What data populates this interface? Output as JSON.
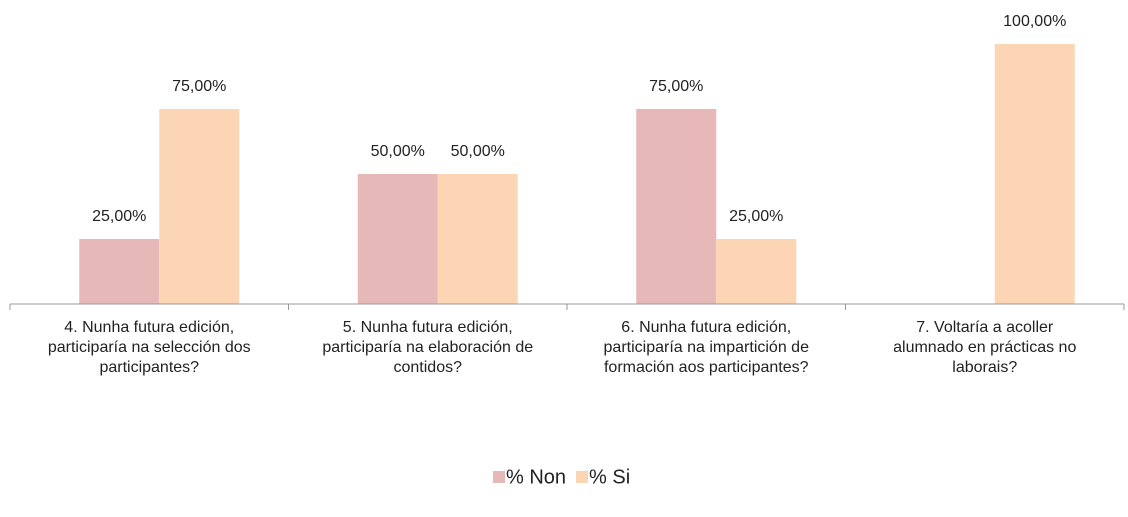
{
  "chart_data": {
    "type": "bar",
    "categories": [
      [
        "4. Nunha futura edición,",
        "participaría na selección dos",
        "participantes?"
      ],
      [
        "5. Nunha futura edición,",
        "participaría na elaboración de",
        "contidos?"
      ],
      [
        "6. Nunha futura edición,",
        "participaría na impartición de",
        "formación aos participantes?"
      ],
      [
        "7. Voltaría a acoller",
        "alumnado en prácticas no",
        "laborais?"
      ]
    ],
    "series": [
      {
        "name": "% Non",
        "color": "#e6b9b8",
        "values": [
          25,
          50,
          75,
          null
        ],
        "value_labels": [
          "25,00%",
          "50,00%",
          "75,00%",
          null
        ]
      },
      {
        "name": "% Si",
        "color": "#fcd5b5",
        "values": [
          75,
          50,
          25,
          100
        ],
        "value_labels": [
          "75,00%",
          "50,00%",
          "25,00%",
          "100,00%"
        ]
      }
    ],
    "ylim": [
      0,
      100
    ],
    "legend": "bottom"
  }
}
